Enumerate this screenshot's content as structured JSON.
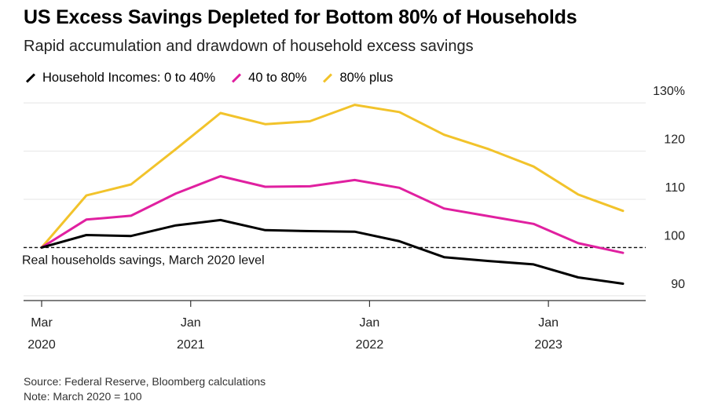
{
  "title": "US Excess Savings Depleted for Bottom 80% of Households",
  "subtitle": "Rapid accumulation and drawdown of household excess savings",
  "legend": [
    {
      "label": "Household Incomes: 0 to 40%",
      "color": "#000000"
    },
    {
      "label": "40 to 80%",
      "color": "#e020a0"
    },
    {
      "label": "80% plus",
      "color": "#f2c32b"
    }
  ],
  "footer": {
    "source": "Source: Federal Reserve, Bloomberg calculations",
    "note": "Note: March 2020 = 100"
  },
  "chart_data": {
    "type": "line",
    "title": "US Excess Savings Depleted for Bottom 80% of Households",
    "subtitle": "Rapid accumulation and drawdown of household excess savings",
    "x": [
      "2020-03",
      "2020-06",
      "2020-09",
      "2020-12",
      "2021-03",
      "2021-06",
      "2021-09",
      "2021-12",
      "2022-03",
      "2022-06",
      "2022-09",
      "2022-12",
      "2023-03",
      "2023-06"
    ],
    "series": [
      {
        "name": "Household Incomes: 0 to 40%",
        "color": "#000000",
        "values": [
          100.0,
          102.6,
          102.4,
          104.6,
          105.7,
          103.6,
          103.4,
          103.3,
          101.3,
          98.0,
          97.2,
          96.5,
          93.8,
          92.5
        ]
      },
      {
        "name": "40 to 80%",
        "color": "#e020a0",
        "values": [
          100.0,
          105.8,
          106.6,
          111.2,
          114.8,
          112.6,
          112.7,
          114.0,
          112.4,
          108.1,
          106.5,
          104.9,
          100.9,
          98.9
        ]
      },
      {
        "name": "80% plus",
        "color": "#f2c32b",
        "values": [
          100.0,
          110.8,
          113.1,
          120.4,
          127.9,
          125.6,
          126.2,
          129.6,
          128.1,
          123.4,
          120.4,
          116.8,
          111.0,
          107.6
        ]
      }
    ],
    "reference_line": {
      "value": 100,
      "label": "Real households savings, March 2020 level",
      "style": "dashed"
    },
    "yticks": [
      "90",
      "100",
      "110",
      "120",
      "130%"
    ],
    "ytick_values": [
      90,
      100,
      110,
      120,
      130
    ],
    "xticks": [
      {
        "x": "2020-03",
        "line1": "Mar",
        "line2": "2020"
      },
      {
        "x": "2021-01",
        "line1": "Jan",
        "line2": "2021"
      },
      {
        "x": "2022-01",
        "line1": "Jan",
        "line2": "2022"
      },
      {
        "x": "2023-01",
        "line1": "Jan",
        "line2": "2023"
      }
    ],
    "xlim": [
      "2020-03",
      "2023-09"
    ],
    "ylim": [
      89,
      131
    ],
    "grid": true,
    "y_axis_side": "right",
    "legend_position": "top-left"
  }
}
